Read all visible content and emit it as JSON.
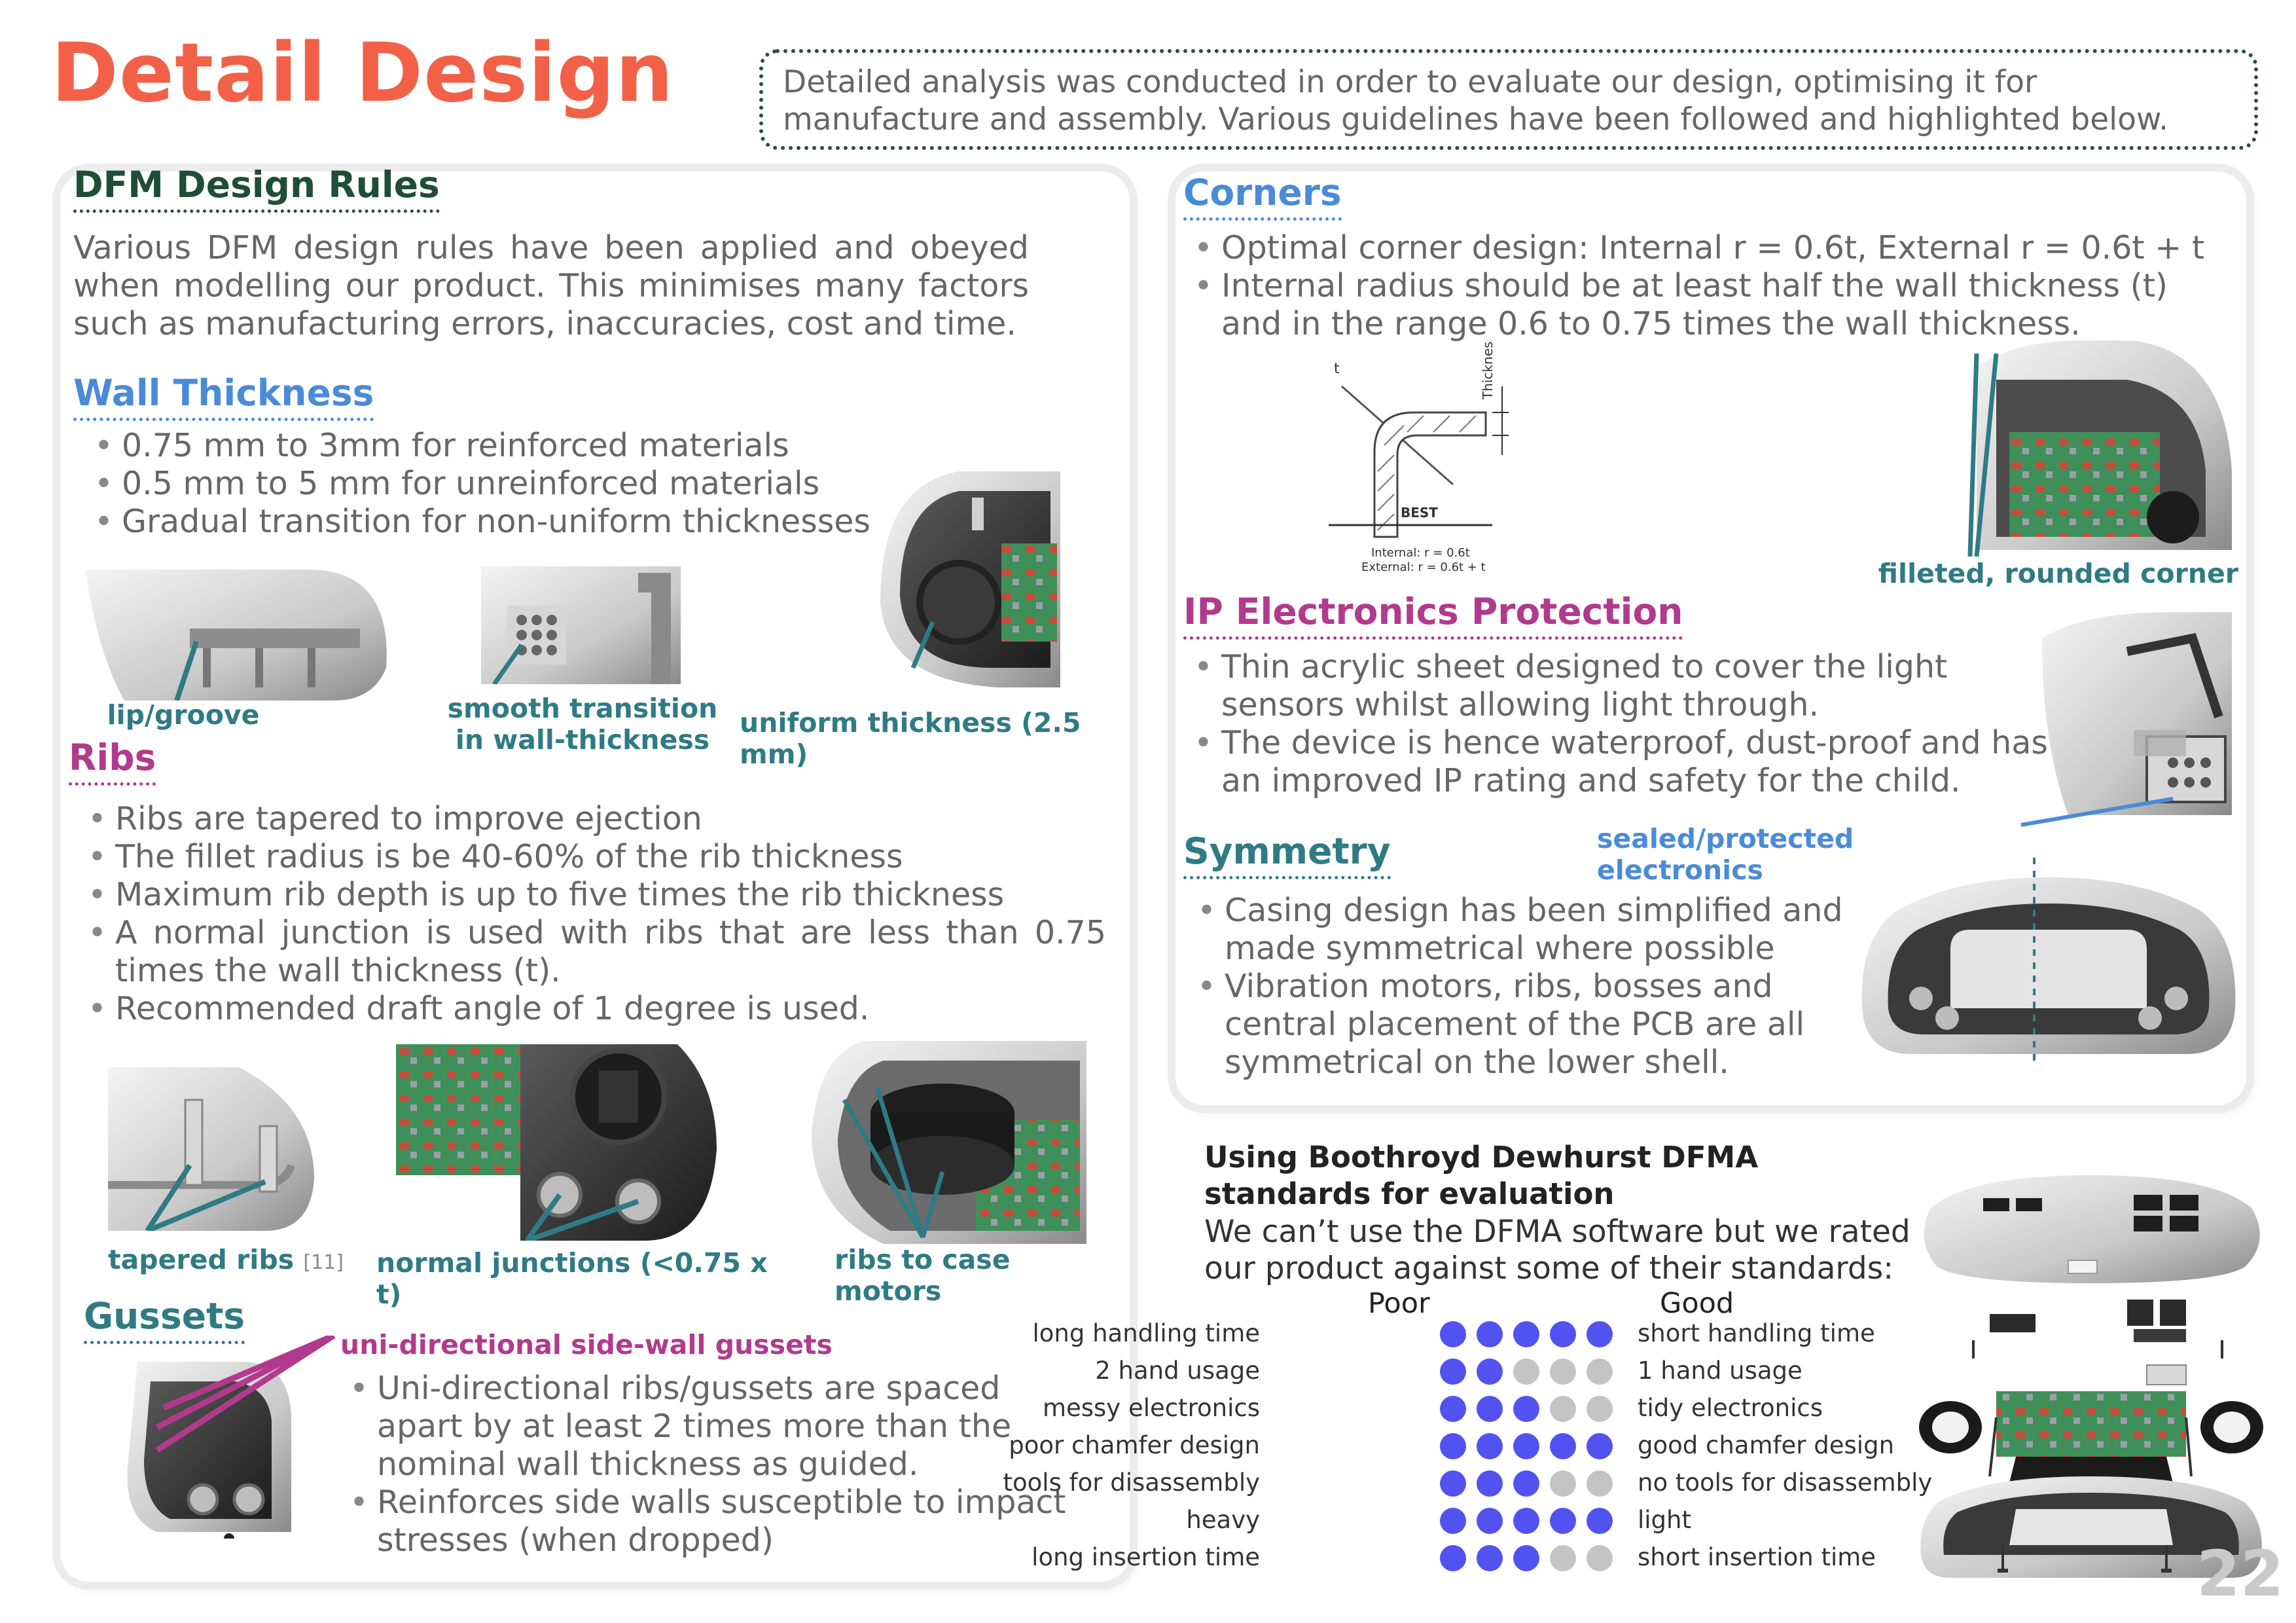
{
  "header": {
    "title": "Detail Design",
    "intro": "Detailed analysis was conducted in order to evaluate our design, optimising it for manufacture and assembly. Various guidelines have been followed and highlighted below."
  },
  "dfm": {
    "heading": "DFM Design Rules",
    "text": "Various DFM design rules have been applied and obeyed when modelling our product. This minimises many factors such as manufacturing errors, inaccuracies, cost and time."
  },
  "wall": {
    "heading": "Wall Thickness",
    "bullets": [
      "0.75 mm to 3mm for reinforced materials",
      "0.5 mm to 5 mm for unreinforced materials",
      "Gradual  transition for non-uniform thicknesses"
    ],
    "captions": {
      "lip": "lip/groove",
      "smooth": "smooth transition in wall-thickness",
      "uniform": "uniform thickness (2.5 mm)"
    }
  },
  "ribs": {
    "heading": "Ribs",
    "bullets": [
      "Ribs are tapered to improve ejection",
      "The fillet radius is be 40-60% of the rib thickness",
      "Maximum rib depth is up to five times the rib thickness",
      "A normal junction is used with ribs that are less than 0.75 times the wall thickness (t).",
      "Recommended draft angle of 1 degree is used."
    ],
    "captions": {
      "tapered": "tapered ribs",
      "tapered_cite": "[11]",
      "normal": "normal junctions (<0.75 x  t)",
      "motors": "ribs to case motors"
    }
  },
  "gussets": {
    "heading": "Gussets",
    "caption": "uni-directional side-wall gussets",
    "bullets": [
      "Uni-directional ribs/gussets are spaced apart by at least 2 times more than the nominal wall thickness as guided.",
      "Reinforces side walls susceptible to impact stresses (when dropped)"
    ]
  },
  "corners": {
    "heading": "Corners",
    "bullets": [
      "Optimal corner design: Internal r = 0.6t, External r = 0.6t + t",
      "Internal radius should be at least half the wall thickness (t) and in the range 0.6 to 0.75 times the wall thickness."
    ],
    "diagram": {
      "t_label": "t",
      "thickness_label": "Thickness",
      "best_label": "BEST",
      "internal": "Internal: r = 0.6t",
      "external": "External: r = 0.6t + t"
    },
    "caption": "filleted, rounded corner"
  },
  "ip": {
    "heading": "IP Electronics Protection",
    "bullets": [
      "Thin acrylic sheet designed to cover the light sensors whilst allowing light through.",
      "The device is hence waterproof, dust-proof and has an improved IP rating and safety for the child."
    ],
    "caption": "sealed/protected electronics"
  },
  "symmetry": {
    "heading": "Symmetry",
    "bullets": [
      "Casing design has been simplified and made symmetrical where possible",
      "Vibration motors, ribs, bosses and central placement of the PCB are all symmetrical on the lower shell."
    ]
  },
  "dfma": {
    "heading_line1": "Using Boothroyd Dewhurst DFMA",
    "heading_line2": "standards for evaluation",
    "text_line1": "We can’t use the DFMA software but we rated",
    "text_line2": "our product against some of their standards:",
    "poor_label": "Poor",
    "good_label": "Good",
    "max_score": 5,
    "filled_color": "#5252f0",
    "empty_color": "#c4c4c4",
    "rows": [
      {
        "poor": "long handling time",
        "good": "short handling time",
        "score": 5
      },
      {
        "poor": "2 hand usage",
        "good": "1 hand usage",
        "score": 2
      },
      {
        "poor": "messy electronics",
        "good": "tidy electronics",
        "score": 3
      },
      {
        "poor": "poor chamfer design",
        "good": "good chamfer design",
        "score": 5
      },
      {
        "poor": "tools for disassembly",
        "good": "no tools for disassembly",
        "score": 3
      },
      {
        "poor": "heavy",
        "good": "light",
        "score": 5
      },
      {
        "poor": "long insertion time",
        "good": "short insertion time",
        "score": 3
      }
    ]
  },
  "page_number": "22"
}
